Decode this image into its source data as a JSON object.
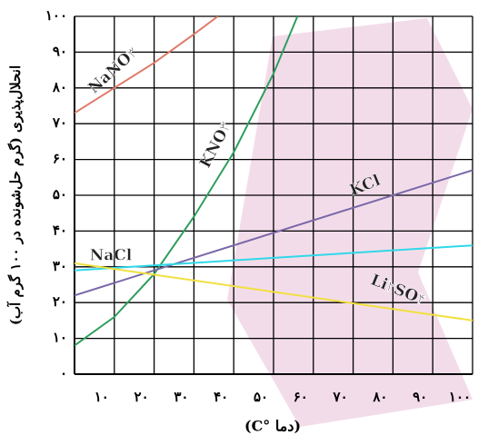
{
  "chart_data": {
    "type": "line",
    "y_label": "انحلال‌پذیری (گرم حل‌شونده در ۱۰۰ گرم آب)",
    "x_label": "(دما °C)",
    "xlim": [
      0,
      100
    ],
    "xticks": [
      {
        "value": 10,
        "label": "۱۰"
      },
      {
        "value": 20,
        "label": "۲۰"
      },
      {
        "value": 30,
        "label": "۳۰"
      },
      {
        "value": 40,
        "label": "۴۰"
      },
      {
        "value": 50,
        "label": "۵۰"
      },
      {
        "value": 60,
        "label": "۶۰"
      },
      {
        "value": 70,
        "label": "۷۰"
      },
      {
        "value": 80,
        "label": "۸۰"
      },
      {
        "value": 90,
        "label": "۹۰"
      },
      {
        "value": 100,
        "label": "۱۰۰"
      }
    ],
    "ylim": [
      0,
      100
    ],
    "yticks": [
      {
        "value": 0,
        "label": "۰"
      },
      {
        "value": 10,
        "label": "۱۰"
      },
      {
        "value": 20,
        "label": "۲۰"
      },
      {
        "value": 30,
        "label": "۳۰"
      },
      {
        "value": 40,
        "label": "۴۰"
      },
      {
        "value": 50,
        "label": "۵۰"
      },
      {
        "value": 60,
        "label": "۶۰"
      },
      {
        "value": 70,
        "label": "۷۰"
      },
      {
        "value": 80,
        "label": "۸۰"
      },
      {
        "value": 90,
        "label": "۹۰"
      },
      {
        "value": 100,
        "label": "۱۰۰"
      }
    ],
    "grid": true,
    "series": [
      {
        "name": "NaNO۳",
        "color": "#e07a6a",
        "x": [
          0,
          10,
          20,
          30,
          36
        ],
        "values": [
          73,
          80,
          87,
          95,
          100
        ]
      },
      {
        "name": "KNO۳",
        "color": "#2e9e5e",
        "x": [
          0,
          10,
          20,
          30,
          40,
          50,
          56
        ],
        "values": [
          8,
          16,
          28,
          44,
          62,
          84,
          100
        ]
      },
      {
        "name": "KCl",
        "color": "#7a68a8",
        "x": [
          0,
          100
        ],
        "values": [
          22,
          57
        ]
      },
      {
        "name": "NaCl",
        "color": "#30d8e8",
        "x": [
          0,
          100
        ],
        "values": [
          29,
          36
        ]
      },
      {
        "name": "Li۲SO۴",
        "color": "#f0e040",
        "x": [
          0,
          100
        ],
        "values": [
          31,
          15
        ]
      }
    ]
  }
}
